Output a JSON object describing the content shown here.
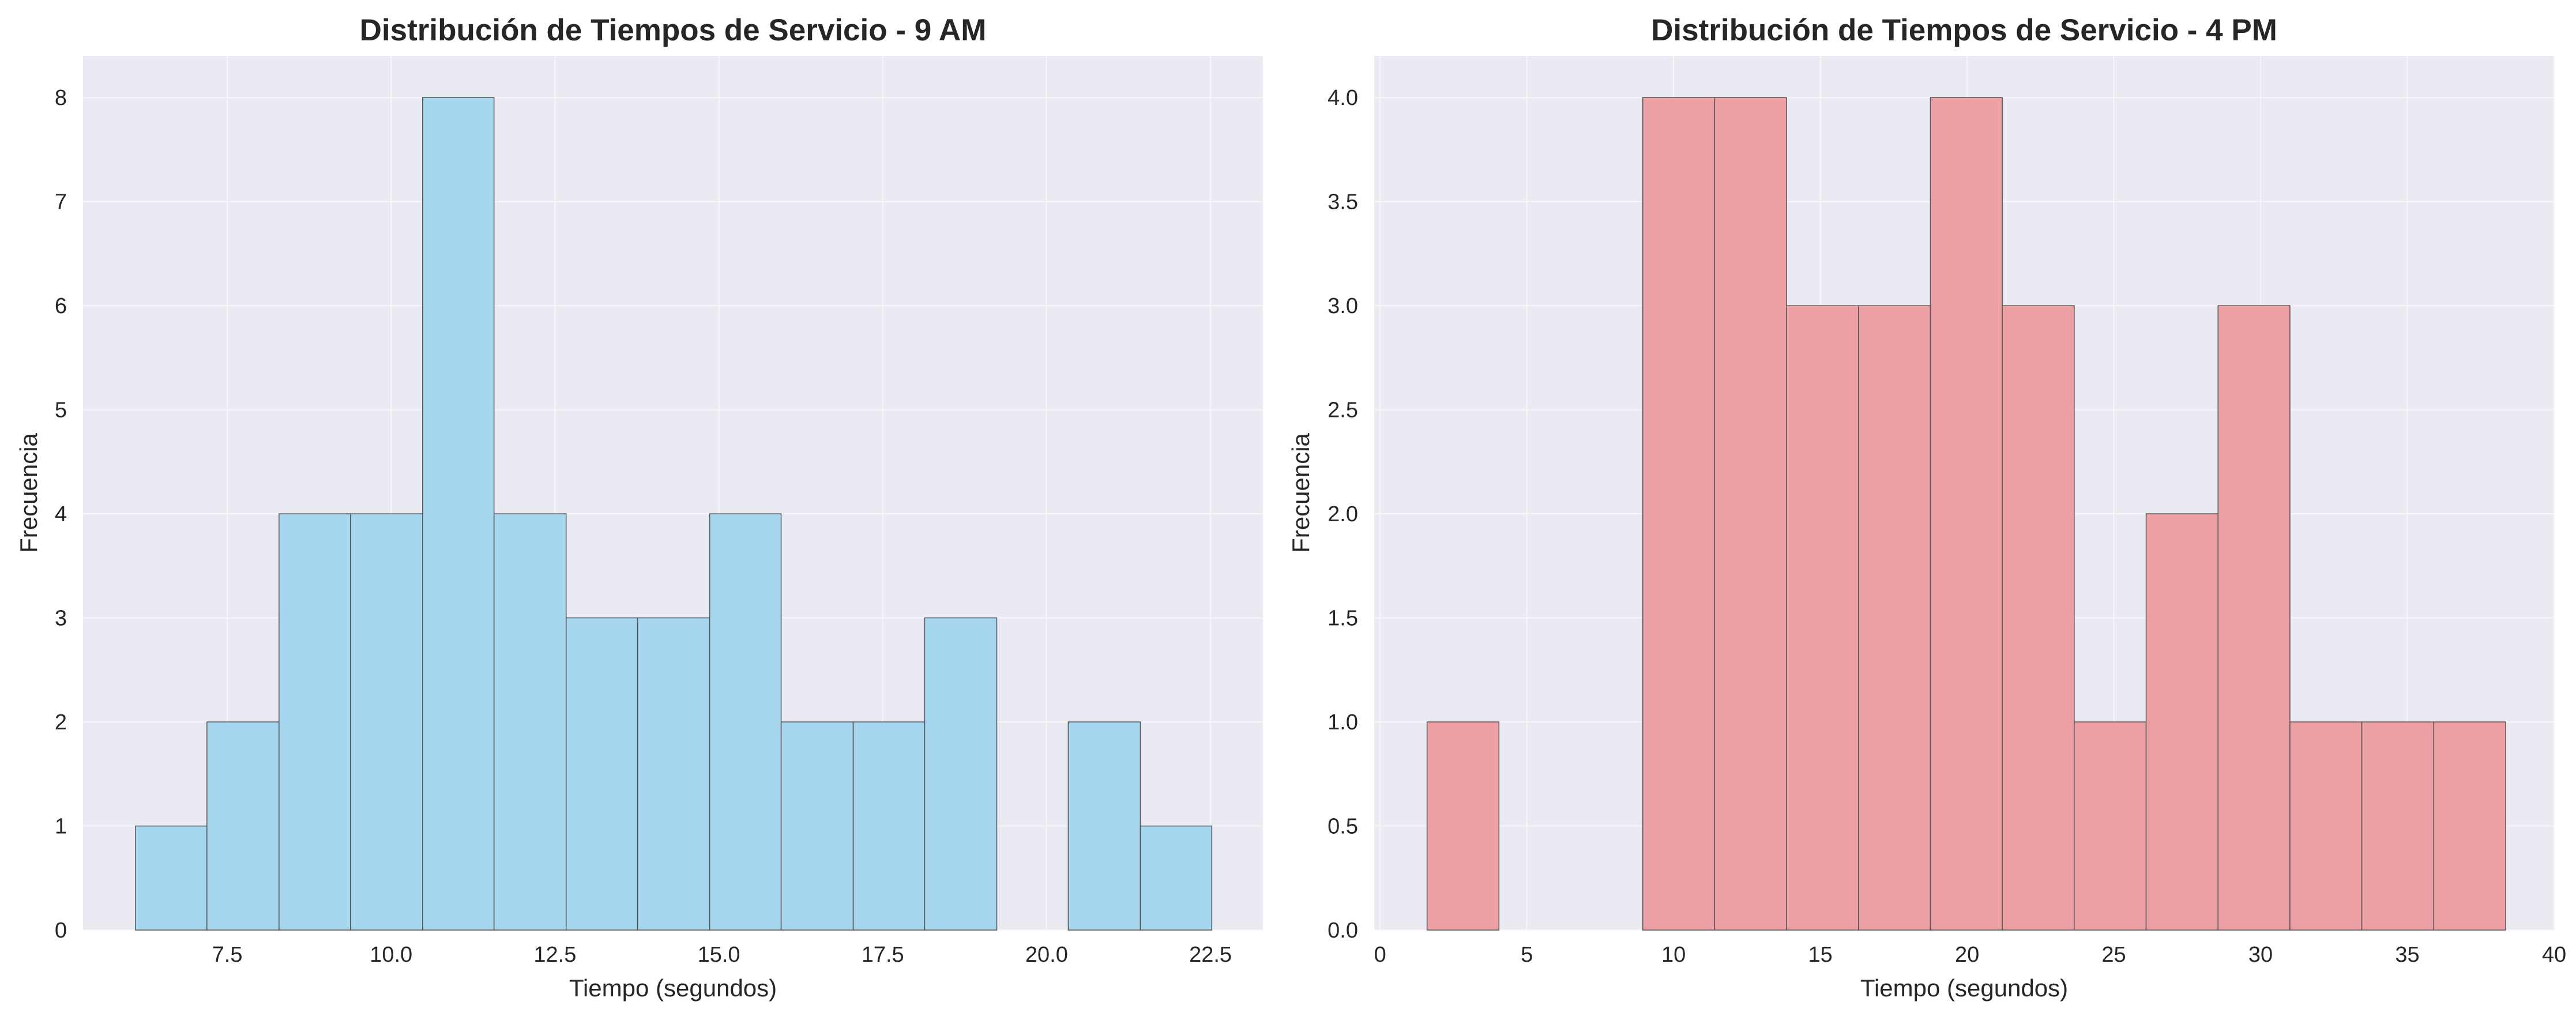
{
  "colors": {
    "plot_background": "#EAEAF2",
    "grid": "#F7F7FA",
    "bar_edge": "#555555",
    "text": "#262626"
  },
  "chart_data": [
    {
      "type": "bar",
      "subtype": "histogram",
      "title": "Distribución de Tiempos de Servicio - 9 AM",
      "xlabel": "Tiempo (segundos)",
      "ylabel": "Frecuencia",
      "bar_color": "#A6D7EE",
      "xlim": [
        5.3,
        23.3
      ],
      "ylim": [
        0,
        8.4
      ],
      "xticks": [
        7.5,
        10.0,
        12.5,
        15.0,
        17.5,
        20.0,
        22.5
      ],
      "xtick_labels": [
        "7.5",
        "10.0",
        "12.5",
        "15.0",
        "17.5",
        "20.0",
        "22.5"
      ],
      "yticks": [
        0,
        1,
        2,
        3,
        4,
        5,
        6,
        7,
        8
      ],
      "ytick_labels": [
        "0",
        "1",
        "2",
        "3",
        "4",
        "5",
        "6",
        "7",
        "8"
      ],
      "bin_edges": [
        6.1,
        7.19,
        8.29,
        9.38,
        10.48,
        11.57,
        12.67,
        13.76,
        14.86,
        15.95,
        17.05,
        18.14,
        19.24,
        20.33,
        21.43,
        22.52
      ],
      "counts": [
        1,
        2,
        4,
        4,
        8,
        4,
        3,
        3,
        4,
        2,
        2,
        3,
        0,
        2,
        1
      ],
      "grid": true,
      "legend": "none"
    },
    {
      "type": "bar",
      "subtype": "histogram",
      "title": "Distribución de Tiempos de Servicio - 4 PM",
      "xlabel": "Tiempo (segundos)",
      "ylabel": "Frecuencia",
      "bar_color": "#EDA0A3",
      "xlim": [
        -0.2,
        40.0
      ],
      "ylim": [
        0,
        4.2
      ],
      "xticks": [
        0,
        5,
        10,
        15,
        20,
        25,
        30,
        35,
        40
      ],
      "xtick_labels": [
        "0",
        "5",
        "10",
        "15",
        "20",
        "25",
        "30",
        "35",
        "40"
      ],
      "yticks": [
        0,
        0.5,
        1.0,
        1.5,
        2.0,
        2.5,
        3.0,
        3.5,
        4.0
      ],
      "ytick_labels": [
        "0.0",
        "0.5",
        "1.0",
        "1.5",
        "2.0",
        "2.5",
        "3.0",
        "3.5",
        "4.0"
      ],
      "bin_edges": [
        1.6,
        4.05,
        6.5,
        8.95,
        11.4,
        13.85,
        16.3,
        18.75,
        21.2,
        23.65,
        26.1,
        28.55,
        31.0,
        33.45,
        35.9,
        38.35
      ],
      "counts": [
        1,
        0,
        0,
        4,
        4,
        3,
        3,
        4,
        3,
        1,
        2,
        3,
        1,
        1,
        1
      ],
      "grid": true,
      "legend": "none"
    }
  ]
}
